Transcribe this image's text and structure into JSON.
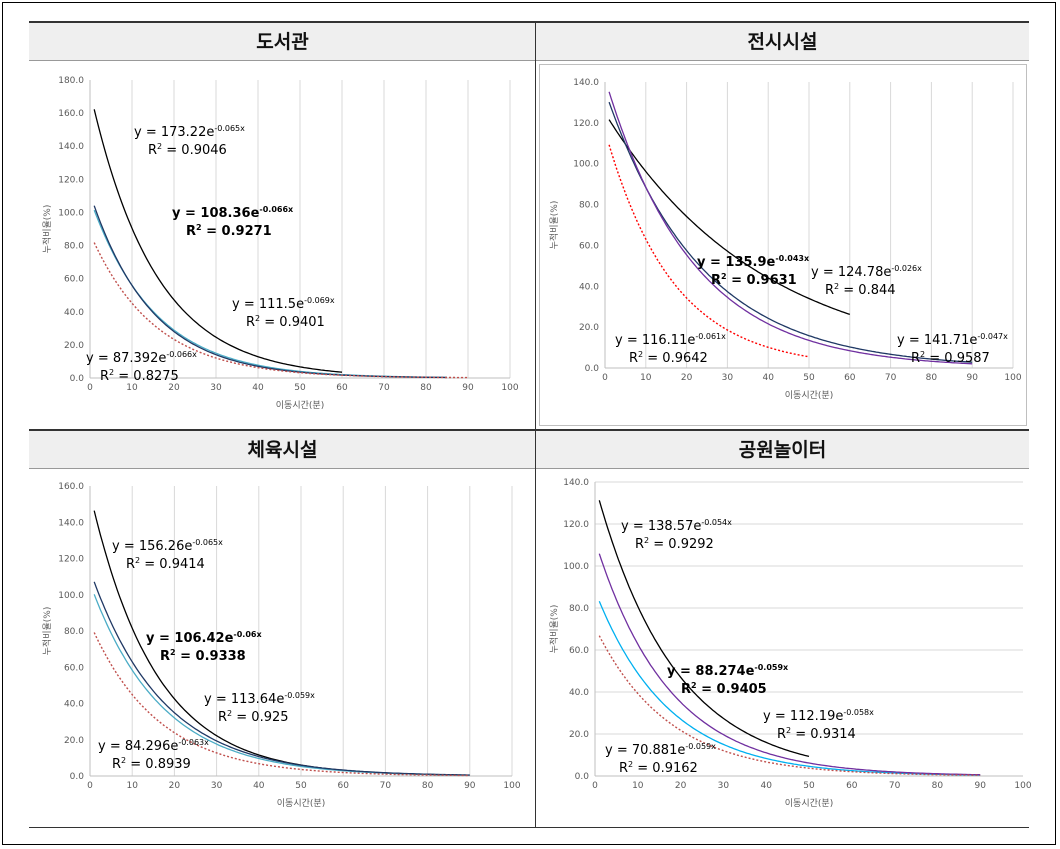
{
  "chart_data": [
    {
      "type": "line",
      "title": "도서관",
      "xlabel": "이동시간(분)",
      "ylabel": "누적비율(%)",
      "xlim": [
        0,
        100
      ],
      "ylim": [
        0,
        180
      ],
      "xticks": [
        "0",
        "10",
        "20",
        "30",
        "40",
        "50",
        "60",
        "70",
        "80",
        "90",
        "100"
      ],
      "yticks": [
        "0.0",
        "20.0",
        "40.0",
        "60.0",
        "80.0",
        "100.0",
        "120.0",
        "140.0",
        "160.0",
        "180.0"
      ],
      "grid": "vertical",
      "series": [
        {
          "a": 173.22,
          "b": 0.065,
          "x_range": [
            1,
            60
          ],
          "color": "#000000",
          "dash": false,
          "equation": {
            "main": "y = 173.22e",
            "exp": "-0.065x",
            "r2_prefix": "R",
            "r2_sup": "2",
            "r2_value": " = 0.9046"
          }
        },
        {
          "a": 108.36,
          "b": 0.066,
          "x_range": [
            1,
            85
          ],
          "color": "#4bacc6",
          "dash": false,
          "equation": {
            "main": "y = 108.36e",
            "exp": "-0.066x",
            "r2_prefix": "R",
            "r2_sup": "2",
            "r2_value": " = 0.9271"
          }
        },
        {
          "a": 111.5,
          "b": 0.069,
          "x_range": [
            1,
            85
          ],
          "color": "#1f3864",
          "dash": false,
          "equation": {
            "main": "y = 111.5e",
            "exp": "-0.069x",
            "r2_prefix": "R",
            "r2_sup": "2",
            "r2_value": " = 0.9401"
          }
        },
        {
          "a": 87.392,
          "b": 0.066,
          "x_range": [
            1,
            90
          ],
          "color": "#c0504d",
          "dash": true,
          "equation": {
            "main": "y = 87.392e",
            "exp": "-0.066x",
            "r2_prefix": "R",
            "r2_sup": "2",
            "r2_value": " = 0.8275"
          }
        }
      ]
    },
    {
      "type": "line",
      "title": "전시시설",
      "xlabel": "이동시간(분)",
      "ylabel": "누적비율(%)",
      "xlim": [
        0,
        100
      ],
      "ylim": [
        0,
        140
      ],
      "xticks": [
        "0",
        "10",
        "20",
        "30",
        "40",
        "50",
        "60",
        "70",
        "80",
        "90",
        "100"
      ],
      "yticks": [
        "0.0",
        "20.0",
        "40.0",
        "60.0",
        "80.0",
        "100.0",
        "120.0",
        "140.0"
      ],
      "grid": "vertical",
      "series": [
        {
          "a": 124.78,
          "b": 0.026,
          "x_range": [
            1,
            60
          ],
          "color": "#000000",
          "dash": false,
          "equation": {
            "main": "y = 124.78e",
            "exp": "-0.026x",
            "r2_prefix": "R",
            "r2_sup": "2",
            "r2_value": " = 0.844"
          }
        },
        {
          "a": 135.9,
          "b": 0.043,
          "x_range": [
            1,
            90
          ],
          "color": "#1f3864",
          "dash": false,
          "equation": {
            "main": "y = 135.9e",
            "exp": "-0.043x",
            "r2_prefix": "R",
            "r2_sup": "2",
            "r2_value": " = 0.9631"
          }
        },
        {
          "a": 141.71,
          "b": 0.047,
          "x_range": [
            1,
            90
          ],
          "color": "#7030a0",
          "dash": false,
          "equation": {
            "main": "y = 141.71e",
            "exp": "-0.047x",
            "r2_prefix": "R",
            "r2_sup": "2",
            "r2_value": " = 0.9587"
          }
        },
        {
          "a": 116.11,
          "b": 0.061,
          "x_range": [
            1,
            50
          ],
          "color": "#ff0000",
          "dash": true,
          "equation": {
            "main": "y = 116.11e",
            "exp": "-0.061x",
            "r2_prefix": "R",
            "r2_sup": "2",
            "r2_value": " = 0.9642"
          }
        }
      ]
    },
    {
      "type": "line",
      "title": "체육시설",
      "xlabel": "이동시간(분)",
      "ylabel": "누적비율(%)",
      "xlim": [
        0,
        100
      ],
      "ylim": [
        0,
        160
      ],
      "xticks": [
        "0",
        "10",
        "20",
        "30",
        "40",
        "50",
        "60",
        "70",
        "80",
        "90",
        "100"
      ],
      "yticks": [
        "0.0",
        "20.0",
        "40.0",
        "60.0",
        "80.0",
        "100.0",
        "120.0",
        "140.0",
        "160.0"
      ],
      "grid": "vertical",
      "series": [
        {
          "a": 156.26,
          "b": 0.065,
          "x_range": [
            1,
            84
          ],
          "color": "#000000",
          "dash": false,
          "equation": {
            "main": "y = 156.26e",
            "exp": "-0.065x",
            "r2_prefix": "R",
            "r2_sup": "2",
            "r2_value": " = 0.9414"
          }
        },
        {
          "a": 106.42,
          "b": 0.06,
          "x_range": [
            1,
            90
          ],
          "color": "#4bacc6",
          "dash": false,
          "equation": {
            "main": "y = 106.42e",
            "exp": "-0.06x",
            "r2_prefix": "R",
            "r2_sup": "2",
            "r2_value": " = 0.9338"
          }
        },
        {
          "a": 113.64,
          "b": 0.059,
          "x_range": [
            1,
            90
          ],
          "color": "#1f3864",
          "dash": false,
          "equation": {
            "main": "y = 113.64e",
            "exp": "-0.059x",
            "r2_prefix": "R",
            "r2_sup": "2",
            "r2_value": " = 0.925"
          }
        },
        {
          "a": 84.296,
          "b": 0.063,
          "x_range": [
            1,
            90
          ],
          "color": "#c0504d",
          "dash": true,
          "equation": {
            "main": "y = 84.296e",
            "exp": "-0.063x",
            "r2_prefix": "R",
            "r2_sup": "2",
            "r2_value": " = 0.8939"
          }
        }
      ]
    },
    {
      "type": "line",
      "title": "공원놀이터",
      "xlabel": "이동시간(분)",
      "ylabel": "누적비율(%)",
      "xlim": [
        0,
        100
      ],
      "ylim": [
        0,
        140
      ],
      "xticks": [
        "0",
        "10",
        "20",
        "30",
        "40",
        "50",
        "60",
        "70",
        "80",
        "90",
        "100"
      ],
      "yticks": [
        "0.0",
        "20.0",
        "40.0",
        "60.0",
        "80.0",
        "100.0",
        "120.0",
        "140.0"
      ],
      "grid": "horizontal",
      "series": [
        {
          "a": 138.57,
          "b": 0.054,
          "x_range": [
            1,
            50
          ],
          "color": "#000000",
          "dash": false,
          "equation": {
            "main": "y = 138.57e",
            "exp": "-0.054x",
            "r2_prefix": "R",
            "r2_sup": "2",
            "r2_value": " = 0.9292"
          }
        },
        {
          "a": 88.274,
          "b": 0.059,
          "x_range": [
            1,
            90
          ],
          "color": "#00b0f0",
          "dash": false,
          "equation": {
            "main": "y = 88.274e",
            "exp": "-0.059x",
            "r2_prefix": "R",
            "r2_sup": "2",
            "r2_value": " = 0.9405"
          }
        },
        {
          "a": 112.19,
          "b": 0.058,
          "x_range": [
            1,
            90
          ],
          "color": "#7030a0",
          "dash": false,
          "equation": {
            "main": "y = 112.19e",
            "exp": "-0.058x",
            "r2_prefix": "R",
            "r2_sup": "2",
            "r2_value": " = 0.9314"
          }
        },
        {
          "a": 70.881,
          "b": 0.059,
          "x_range": [
            1,
            90
          ],
          "color": "#c0504d",
          "dash": true,
          "equation": {
            "main": "y = 70.881e",
            "exp": "-0.059x",
            "r2_prefix": "R",
            "r2_sup": "2",
            "r2_value": " = 0.9162"
          }
        }
      ]
    }
  ]
}
